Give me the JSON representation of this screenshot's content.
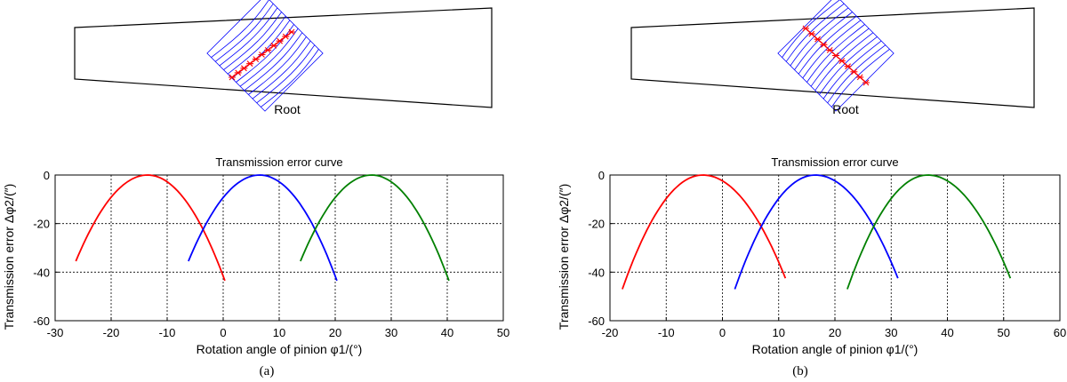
{
  "colors": {
    "series": [
      "#ff0000",
      "#0000ff",
      "#008000"
    ],
    "grid_lines": "#0000ff",
    "contact_marks": "#ff0000"
  },
  "chart_data": [
    {
      "type": "line",
      "subcaption": "(a)",
      "root_label": "Root",
      "contact_path": "lower-left to upper-right",
      "title": "Transmission error curve",
      "xlabel": "Rotation angle of  pinion φ1/(°)",
      "ylabel": "Transmission error Δφ2/(″)",
      "xlim": [
        -30,
        50
      ],
      "ylim": [
        -60,
        0
      ],
      "xticks": [
        -30,
        -20,
        -10,
        0,
        10,
        20,
        30,
        40,
        50
      ],
      "yticks": [
        -60,
        -40,
        -20,
        0
      ],
      "grid": true,
      "series": [
        {
          "x_start": -26.3,
          "x_vertex": -13.5,
          "x_end": 0.3,
          "y_start": -35.5,
          "y_end": -43.5
        },
        {
          "x_start": -6.2,
          "x_vertex": 6.5,
          "x_end": 20.3,
          "y_start": -35.5,
          "y_end": -43.5
        },
        {
          "x_start": 13.8,
          "x_vertex": 26.5,
          "x_end": 40.3,
          "y_start": -35.5,
          "y_end": -43.5
        }
      ]
    },
    {
      "type": "line",
      "subcaption": "(b)",
      "root_label": "Root",
      "contact_path": "upper-left to lower-right",
      "title": "Transmission error curve",
      "xlabel": "Rotation angle of  pinion φ1/(°)",
      "ylabel": "Transmission error Δφ2/(″)",
      "xlim": [
        -20,
        60
      ],
      "ylim": [
        -60,
        0
      ],
      "xticks": [
        -20,
        -10,
        0,
        10,
        20,
        30,
        40,
        50,
        60
      ],
      "yticks": [
        -60,
        -40,
        -20,
        0
      ],
      "grid": true,
      "series": [
        {
          "x_start": -17.8,
          "x_vertex": -3.5,
          "x_end": 11.2,
          "y_start": -47,
          "y_end": -42.5
        },
        {
          "x_start": 2.2,
          "x_vertex": 16.5,
          "x_end": 31.2,
          "y_start": -47,
          "y_end": -42.5
        },
        {
          "x_start": 22.2,
          "x_vertex": 36.5,
          "x_end": 51.2,
          "y_start": -47,
          "y_end": -42.5
        }
      ]
    }
  ]
}
